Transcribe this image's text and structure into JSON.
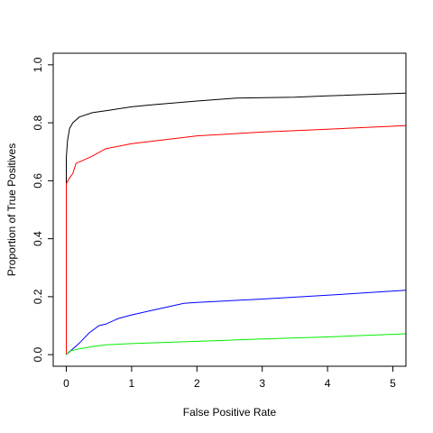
{
  "chart_data": {
    "type": "line",
    "title": "",
    "xlabel": "False Positive Rate",
    "ylabel": "Proportion of True Positives",
    "xlim": [
      -0.2,
      5.2
    ],
    "ylim": [
      -0.04,
      1.04
    ],
    "x_ticks": [
      0,
      1,
      2,
      3,
      4,
      5
    ],
    "x_tick_labels": [
      "0",
      "1",
      "2",
      "3",
      "4",
      "5"
    ],
    "y_ticks": [
      0.0,
      0.2,
      0.4,
      0.6,
      0.8,
      1.0
    ],
    "y_tick_labels": [
      "0.0",
      "0.2",
      "0.4",
      "0.6",
      "0.8",
      "1.0"
    ],
    "grid": false,
    "series": [
      {
        "color": "#000000",
        "points": [
          [
            0,
            0
          ],
          [
            0,
            0.68
          ],
          [
            0.02,
            0.74
          ],
          [
            0.05,
            0.78
          ],
          [
            0.1,
            0.8
          ],
          [
            0.2,
            0.82
          ],
          [
            0.4,
            0.835
          ],
          [
            0.7,
            0.845
          ],
          [
            1.0,
            0.855
          ],
          [
            1.3,
            0.862
          ],
          [
            2.0,
            0.875
          ],
          [
            2.6,
            0.885
          ],
          [
            3.5,
            0.888
          ],
          [
            4.0,
            0.893
          ],
          [
            5.2,
            0.902
          ]
        ]
      },
      {
        "color": "#ff0000",
        "points": [
          [
            0,
            0
          ],
          [
            0,
            0.59
          ],
          [
            0.05,
            0.61
          ],
          [
            0.1,
            0.625
          ],
          [
            0.15,
            0.66
          ],
          [
            0.25,
            0.67
          ],
          [
            0.4,
            0.685
          ],
          [
            0.6,
            0.71
          ],
          [
            1.0,
            0.728
          ],
          [
            2.0,
            0.755
          ],
          [
            3.0,
            0.768
          ],
          [
            4.0,
            0.778
          ],
          [
            5.2,
            0.79
          ]
        ]
      },
      {
        "color": "#0000ff",
        "points": [
          [
            0,
            0
          ],
          [
            0.2,
            0.04
          ],
          [
            0.35,
            0.075
          ],
          [
            0.5,
            0.1
          ],
          [
            0.6,
            0.105
          ],
          [
            0.8,
            0.125
          ],
          [
            1.0,
            0.137
          ],
          [
            1.3,
            0.152
          ],
          [
            1.8,
            0.177
          ],
          [
            2.0,
            0.18
          ],
          [
            3.0,
            0.192
          ],
          [
            4.0,
            0.205
          ],
          [
            5.2,
            0.222
          ]
        ]
      },
      {
        "color": "#00ee00",
        "points": [
          [
            0,
            0
          ],
          [
            0.05,
            0.012
          ],
          [
            0.2,
            0.02
          ],
          [
            0.4,
            0.028
          ],
          [
            0.6,
            0.034
          ],
          [
            1.0,
            0.038
          ],
          [
            2.0,
            0.046
          ],
          [
            3.0,
            0.054
          ],
          [
            4.0,
            0.061
          ],
          [
            5.2,
            0.072
          ]
        ]
      }
    ]
  }
}
